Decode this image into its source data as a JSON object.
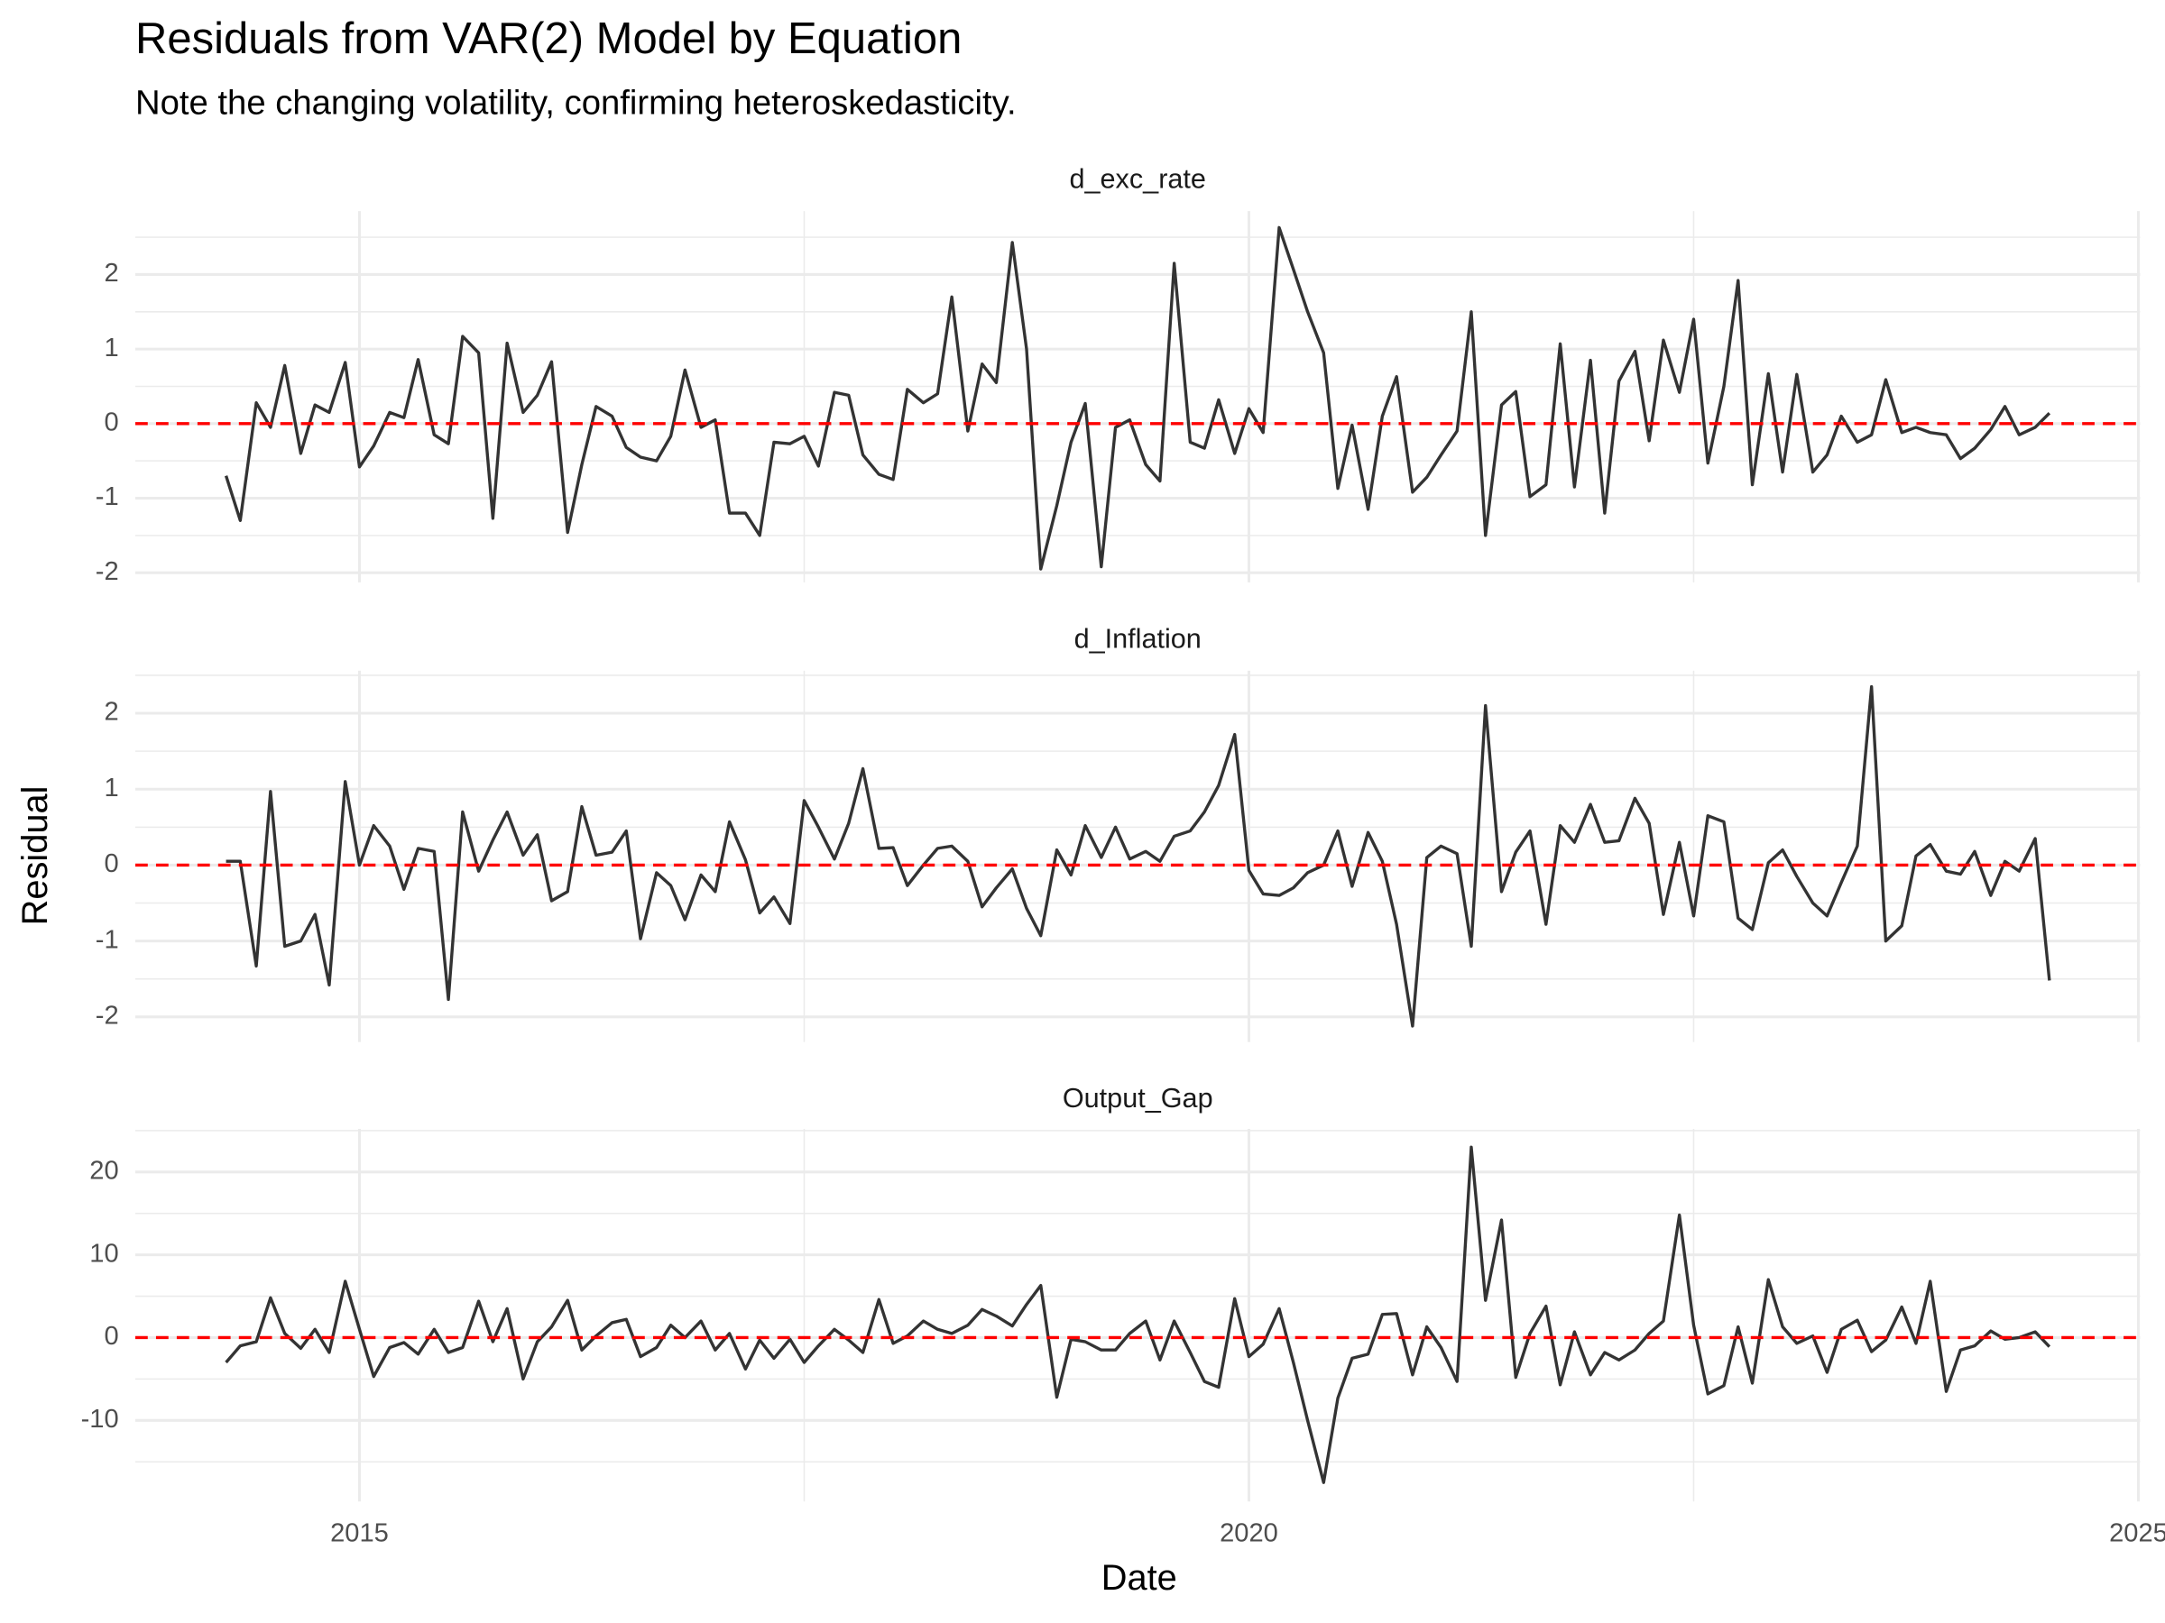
{
  "chart_data": {
    "type": "line",
    "title": "Residuals from VAR(2) Model by Equation",
    "subtitle": "Note the changing volatility, confirming heteroskedasticity.",
    "xlabel": "Date",
    "ylabel": "Residual",
    "x": [
      2014.25,
      2014.33,
      2014.42,
      2014.5,
      2014.58,
      2014.67,
      2014.75,
      2014.83,
      2014.92,
      2015,
      2015.08,
      2015.17,
      2015.25,
      2015.33,
      2015.42,
      2015.5,
      2015.58,
      2015.67,
      2015.75,
      2015.83,
      2015.92,
      2016,
      2016.08,
      2016.17,
      2016.25,
      2016.33,
      2016.42,
      2016.5,
      2016.58,
      2016.67,
      2016.75,
      2016.83,
      2016.92,
      2017,
      2017.08,
      2017.17,
      2017.25,
      2017.33,
      2017.42,
      2017.5,
      2017.58,
      2017.67,
      2017.75,
      2017.83,
      2017.92,
      2018,
      2018.08,
      2018.17,
      2018.25,
      2018.33,
      2018.42,
      2018.5,
      2018.58,
      2018.67,
      2018.75,
      2018.83,
      2018.92,
      2019,
      2019.08,
      2019.17,
      2019.25,
      2019.33,
      2019.42,
      2019.5,
      2019.58,
      2019.67,
      2019.75,
      2019.83,
      2019.92,
      2020,
      2020.08,
      2020.17,
      2020.25,
      2020.33,
      2020.42,
      2020.5,
      2020.58,
      2020.67,
      2020.75,
      2020.83,
      2020.92,
      2021,
      2021.08,
      2021.17,
      2021.25,
      2021.33,
      2021.42,
      2021.5,
      2021.58,
      2021.67,
      2021.75,
      2021.83,
      2021.92,
      2022,
      2022.08,
      2022.17,
      2022.25,
      2022.33,
      2022.42,
      2022.5,
      2022.58,
      2022.67,
      2022.75,
      2022.83,
      2022.92,
      2023,
      2023.08,
      2023.17,
      2023.25,
      2023.33,
      2023.42,
      2023.5,
      2023.58,
      2023.67,
      2023.75,
      2023.83,
      2023.92,
      2024,
      2024.08,
      2024.17,
      2024.25,
      2024.33,
      2024.42,
      2024.5
    ],
    "xlim": [
      2013.74,
      2025.01
    ],
    "xticks": [
      2015,
      2020,
      2025
    ],
    "grid": true,
    "color": "#333333",
    "ref_line": {
      "value": 0,
      "color": "#ff0000"
    },
    "panels": [
      {
        "title": "d_exc_rate",
        "ylim": [
          -2.13,
          2.85
        ],
        "yticks": [
          -2,
          -1,
          0,
          1,
          2
        ],
        "values": [
          -0.7,
          -1.3,
          0.28,
          -0.05,
          0.78,
          -0.4,
          0.25,
          0.15,
          0.82,
          -0.58,
          -0.3,
          0.15,
          0.08,
          0.86,
          -0.15,
          -0.27,
          1.17,
          0.95,
          -1.27,
          1.08,
          0.15,
          0.38,
          0.83,
          -1.46,
          -0.55,
          0.23,
          0.1,
          -0.32,
          -0.45,
          -0.5,
          -0.17,
          0.72,
          -0.05,
          0.05,
          -1.2,
          -1.2,
          -1.5,
          -0.25,
          -0.27,
          -0.17,
          -0.57,
          0.42,
          0.38,
          -0.42,
          -0.68,
          -0.75,
          0.46,
          0.28,
          0.4,
          1.7,
          -0.1,
          0.8,
          0.55,
          2.43,
          1.0,
          -1.95,
          -1.1,
          -0.25,
          0.27,
          -1.92,
          -0.05,
          0.05,
          -0.55,
          -0.77,
          2.15,
          -0.25,
          -0.33,
          0.32,
          -0.4,
          0.2,
          -0.12,
          2.63,
          2.07,
          1.5,
          0.95,
          -0.87,
          -0.02,
          -1.15,
          0.1,
          0.63,
          -0.92,
          -0.72,
          -0.42,
          -0.1,
          1.5,
          -1.5,
          0.25,
          0.43,
          -0.98,
          -0.82,
          1.07,
          -0.85,
          0.85,
          -1.2,
          0.57,
          0.97,
          -0.23,
          1.12,
          0.42,
          1.4,
          -0.53,
          0.5,
          1.92,
          -0.82,
          0.67,
          -0.65,
          0.66,
          -0.65,
          -0.42,
          0.1,
          -0.25,
          -0.15,
          0.59,
          -0.12,
          -0.05,
          -0.12,
          -0.15,
          -0.47,
          -0.33,
          -0.08,
          0.23,
          -0.15,
          -0.05,
          0.14
        ]
      },
      {
        "title": "d_Inflation",
        "ylim": [
          -2.33,
          2.56
        ],
        "yticks": [
          -2,
          -1,
          0,
          1,
          2
        ],
        "values": [
          0.05,
          0.05,
          -1.33,
          0.97,
          -1.07,
          -1.0,
          -0.65,
          -1.58,
          1.1,
          0.0,
          0.52,
          0.25,
          -0.32,
          0.22,
          0.18,
          -1.77,
          0.7,
          -0.08,
          0.33,
          0.7,
          0.13,
          0.4,
          -0.47,
          -0.35,
          0.77,
          0.13,
          0.17,
          0.45,
          -0.97,
          -0.1,
          -0.27,
          -0.72,
          -0.13,
          -0.35,
          0.57,
          0.07,
          -0.63,
          -0.42,
          -0.77,
          0.85,
          0.5,
          0.08,
          0.55,
          1.27,
          0.22,
          0.23,
          -0.27,
          0.0,
          0.22,
          0.25,
          0.05,
          -0.55,
          -0.3,
          -0.05,
          -0.57,
          -0.93,
          0.2,
          -0.13,
          0.52,
          0.1,
          0.5,
          0.08,
          0.18,
          0.05,
          0.38,
          0.45,
          0.7,
          1.05,
          1.72,
          -0.07,
          -0.38,
          -0.4,
          -0.3,
          -0.1,
          0.0,
          0.45,
          -0.28,
          0.43,
          0.05,
          -0.78,
          -2.12,
          0.1,
          0.25,
          0.15,
          -1.07,
          2.1,
          -0.35,
          0.17,
          0.45,
          -0.78,
          0.52,
          0.3,
          0.8,
          0.3,
          0.32,
          0.88,
          0.55,
          -0.65,
          0.3,
          -0.67,
          0.65,
          0.57,
          -0.7,
          -0.85,
          0.03,
          0.2,
          -0.15,
          -0.5,
          -0.67,
          -0.23,
          0.25,
          2.35,
          -1.0,
          -0.8,
          0.12,
          0.27,
          -0.08,
          -0.12,
          0.18,
          -0.4,
          0.05,
          -0.08,
          0.35,
          -1.52
        ]
      },
      {
        "title": "Output_Gap",
        "ylim": [
          -19.8,
          25.2
        ],
        "yticks": [
          -10,
          0,
          10,
          20
        ],
        "values": [
          -3,
          -1,
          -0.5,
          4.8,
          0.5,
          -1.3,
          1,
          -1.8,
          6.8,
          1,
          -4.7,
          -1.2,
          -0.6,
          -2,
          1,
          -1.8,
          -1.2,
          4.4,
          -0.5,
          3.5,
          -5,
          -0.5,
          1.3,
          4.5,
          -1.5,
          0.2,
          1.8,
          2.2,
          -2.3,
          -1.2,
          1.5,
          0,
          2,
          -1.5,
          0.5,
          -3.8,
          -0.3,
          -2.5,
          -0.2,
          -3,
          -1,
          1,
          -0.3,
          -1.8,
          4.6,
          -0.7,
          0.2,
          2,
          1,
          0.5,
          1.5,
          3.4,
          2.6,
          1.4,
          4,
          6.3,
          -7.2,
          -0.2,
          -0.5,
          -1.5,
          -1.5,
          0.5,
          2,
          -2.7,
          2,
          -1.8,
          -5.3,
          -6,
          4.7,
          -2.3,
          -0.8,
          3.5,
          -3,
          -10,
          -17.5,
          -7.3,
          -2.5,
          -2,
          2.8,
          2.9,
          -4.5,
          1.3,
          -1.2,
          -5.3,
          23,
          4.5,
          14.2,
          -4.8,
          0.5,
          3.8,
          -5.7,
          0.7,
          -4.5,
          -1.8,
          -2.7,
          -1.5,
          0.5,
          2,
          14.8,
          1.5,
          -6.8,
          -5.8,
          1.3,
          -5.5,
          7,
          1.3,
          -0.7,
          0.2,
          -4.2,
          1,
          2.1,
          -1.7,
          -0.3,
          3.7,
          -0.7,
          6.8,
          -6.5,
          -1.5,
          -1,
          0.8,
          -0.2,
          0,
          0.7,
          -1.1
        ]
      }
    ]
  }
}
